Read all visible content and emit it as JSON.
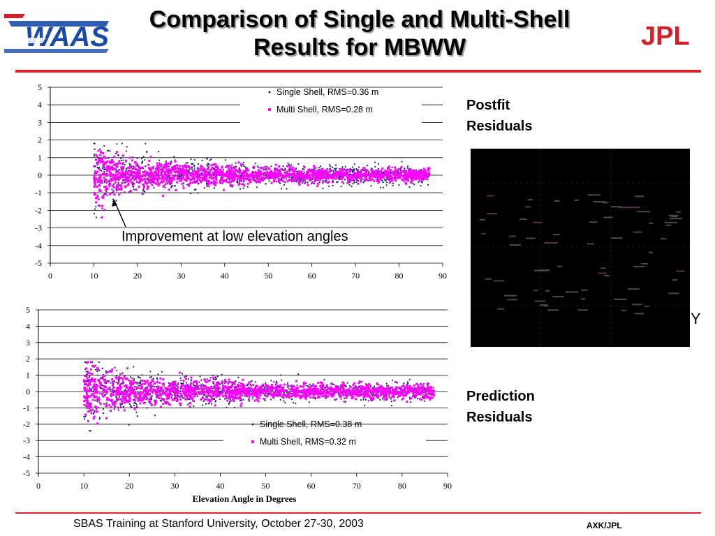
{
  "slide": {
    "title_line1": "Comparison of Single and Multi-Shell",
    "title_line2": "Results for MBWW",
    "logo_left": "WAAS",
    "logo_right": "JPL",
    "label_postfit_line1": "Postfit",
    "label_postfit_line2": "Residuals",
    "label_prediction_line1": "Prediction",
    "label_prediction_line2": "Residuals",
    "stray_letter": "Y",
    "footer_left": "SBAS Training at Stanford University, October 27-30, 2003",
    "footer_right": "AXK/JPL",
    "accent_color": "#e2222e"
  },
  "chart_data": [
    {
      "type": "scatter",
      "title": "",
      "xlabel": "",
      "ylabel": "",
      "xlim": [
        0,
        90
      ],
      "ylim": [
        -5,
        5
      ],
      "xticks": [
        0,
        10,
        20,
        30,
        40,
        50,
        60,
        70,
        80,
        90
      ],
      "yticks": [
        5,
        4,
        3,
        2,
        1,
        0,
        -1,
        -2,
        -3,
        -4,
        -5
      ],
      "grid": "horizontal",
      "legend_position": "top-right",
      "annotation": "Improvement at low elevation angles",
      "series": [
        {
          "name": "Single Shell, RMS=0.36 m",
          "color": "#1a1a7a",
          "x_range": [
            10,
            87
          ],
          "rms": 0.36
        },
        {
          "name": "Multi Shell, RMS=0.28 m",
          "color": "#ff00ff",
          "x_range": [
            10,
            87
          ],
          "rms": 0.28
        }
      ]
    },
    {
      "type": "scatter",
      "title": "",
      "xlabel": "Elevation Angle in Degrees",
      "ylabel": "",
      "xlim": [
        0,
        90
      ],
      "ylim": [
        -5,
        5
      ],
      "xticks": [
        0,
        10,
        20,
        30,
        40,
        50,
        60,
        70,
        80,
        90
      ],
      "yticks": [
        5,
        4,
        3,
        2,
        1,
        0,
        -1,
        -2,
        -3,
        -4,
        -5
      ],
      "grid": "horizontal",
      "legend_position": "bottom-right",
      "series": [
        {
          "name": "Single Shell, RMS=0.38 m",
          "color": "#1a1a7a",
          "x_range": [
            10,
            87
          ],
          "rms": 0.38
        },
        {
          "name": "Multi Shell, RMS=0.32 m",
          "color": "#ff00ff",
          "x_range": [
            10,
            87
          ],
          "rms": 0.32
        }
      ]
    }
  ]
}
